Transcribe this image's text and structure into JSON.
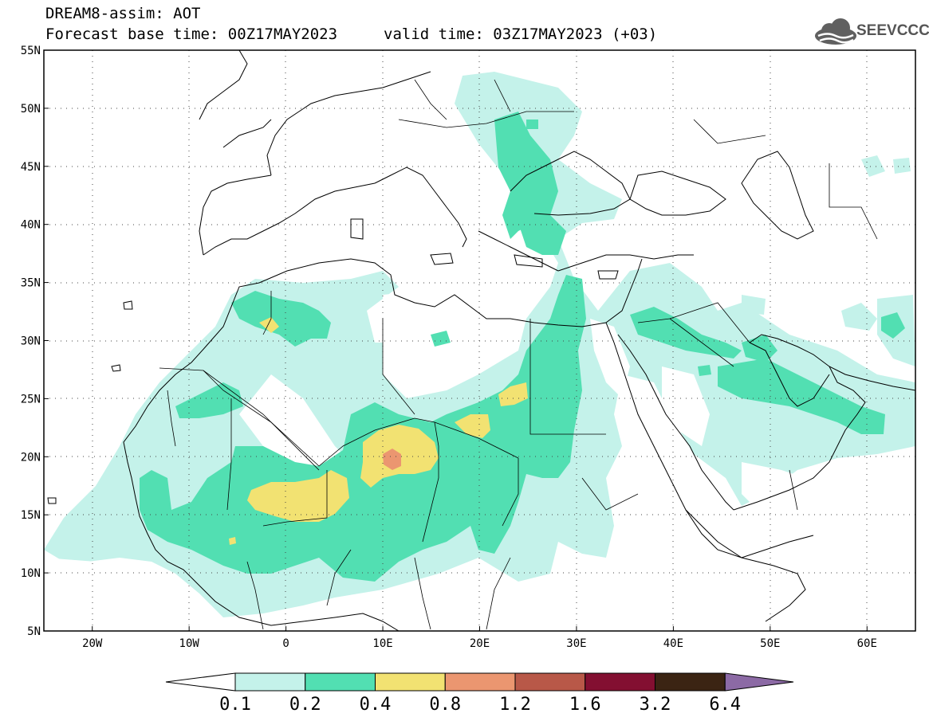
{
  "header": {
    "title": "DREAM8-assim: AOT",
    "base_time": "Forecast base time: 00Z17MAY2023",
    "valid_time": "valid time: 03Z17MAY2023 (+03)",
    "logo_text": "SEEVCCC"
  },
  "map": {
    "lon_range": [
      -25,
      65
    ],
    "lat_range": [
      5,
      55
    ],
    "lon_ticks": [
      {
        "value": -20,
        "label": "20W"
      },
      {
        "value": -10,
        "label": "10W"
      },
      {
        "value": 0,
        "label": "0"
      },
      {
        "value": 10,
        "label": "10E"
      },
      {
        "value": 20,
        "label": "20E"
      },
      {
        "value": 30,
        "label": "30E"
      },
      {
        "value": 40,
        "label": "40E"
      },
      {
        "value": 50,
        "label": "50E"
      },
      {
        "value": 60,
        "label": "60E"
      }
    ],
    "lat_ticks": [
      {
        "value": 55,
        "label": "55N"
      },
      {
        "value": 50,
        "label": "50N"
      },
      {
        "value": 45,
        "label": "45N"
      },
      {
        "value": 40,
        "label": "40N"
      },
      {
        "value": 35,
        "label": "35N"
      },
      {
        "value": 30,
        "label": "30N"
      },
      {
        "value": 25,
        "label": "25N"
      },
      {
        "value": 20,
        "label": "20N"
      },
      {
        "value": 15,
        "label": "15N"
      },
      {
        "value": 10,
        "label": "10N"
      },
      {
        "value": 5,
        "label": "5N"
      }
    ],
    "gridlines": "dotted"
  },
  "colorbar": {
    "labels": [
      "0.1",
      "0.2",
      "0.4",
      "0.8",
      "1.2",
      "1.6",
      "3.2",
      "6.4"
    ],
    "colors": [
      "#ffffff",
      "#c4f2ea",
      "#52dfb2",
      "#f2e272",
      "#eb9670",
      "#b85848",
      "#830f31",
      "#3b2413",
      "#8c6aa5"
    ]
  },
  "chart_data": {
    "type": "heatmap",
    "variable": "AOT",
    "levels": [
      0.1,
      0.2,
      0.4,
      0.8,
      1.2,
      1.6,
      3.2,
      6.4
    ],
    "xlim": [
      -25,
      65
    ],
    "ylim": [
      5,
      55
    ]
  }
}
